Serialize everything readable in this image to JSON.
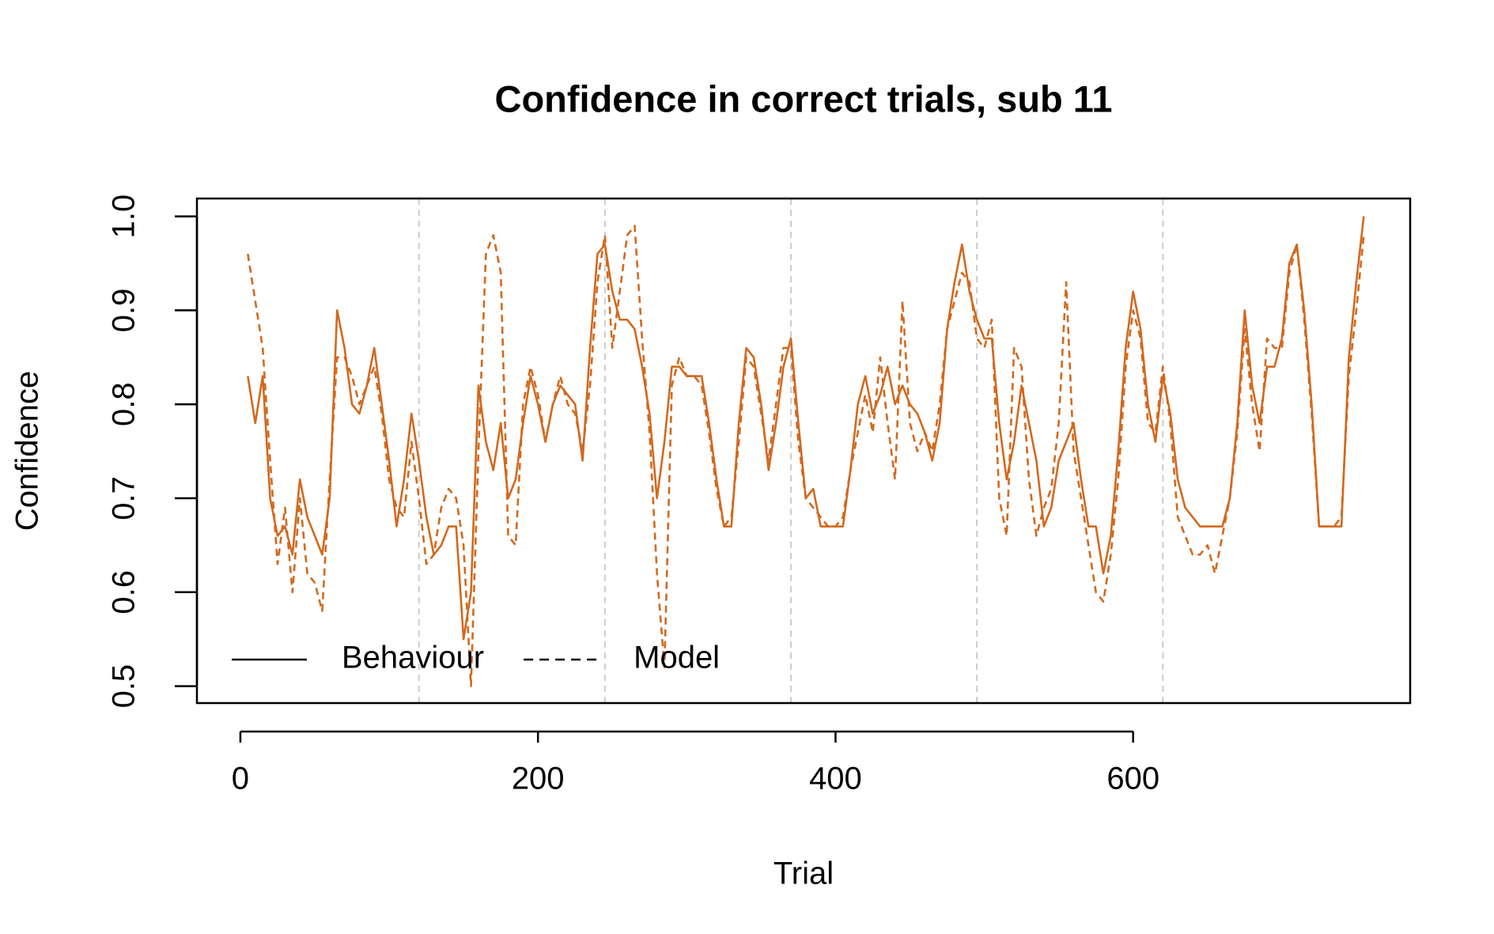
{
  "chart_data": {
    "type": "line",
    "title": "Confidence in correct trials, sub 11",
    "xlabel": "Trial",
    "ylabel": "Confidence",
    "x": [
      5,
      10,
      15,
      20,
      25,
      30,
      35,
      40,
      45,
      50,
      55,
      60,
      65,
      70,
      75,
      80,
      85,
      90,
      95,
      100,
      105,
      110,
      115,
      120,
      125,
      130,
      135,
      140,
      145,
      150,
      155,
      160,
      165,
      170,
      175,
      180,
      185,
      190,
      195,
      200,
      205,
      210,
      215,
      220,
      225,
      230,
      235,
      240,
      245,
      250,
      255,
      260,
      265,
      270,
      275,
      280,
      285,
      290,
      295,
      300,
      305,
      310,
      315,
      320,
      325,
      330,
      335,
      340,
      345,
      350,
      355,
      360,
      365,
      370,
      375,
      380,
      385,
      390,
      395,
      400,
      405,
      410,
      415,
      420,
      425,
      430,
      435,
      440,
      445,
      450,
      455,
      460,
      465,
      470,
      475,
      480,
      485,
      490,
      495,
      500,
      505,
      510,
      515,
      520,
      525,
      530,
      535,
      540,
      545,
      550,
      555,
      560,
      565,
      570,
      575,
      580,
      585,
      590,
      595,
      600,
      605,
      610,
      615,
      620,
      625,
      630,
      635,
      640,
      645,
      650,
      655,
      660,
      665,
      670,
      675,
      680,
      685,
      690,
      695,
      700,
      705,
      710,
      715,
      720,
      725,
      730,
      735,
      740,
      745,
      750,
      755
    ],
    "series": [
      {
        "name": "Behaviour",
        "color": "#d2691e",
        "linestyle": "solid",
        "values": [
          0.83,
          0.78,
          0.83,
          0.7,
          0.66,
          0.67,
          0.64,
          0.72,
          0.68,
          0.66,
          0.64,
          0.7,
          0.9,
          0.86,
          0.8,
          0.79,
          0.82,
          0.86,
          0.8,
          0.74,
          0.67,
          0.72,
          0.79,
          0.74,
          0.68,
          0.64,
          0.65,
          0.67,
          0.67,
          0.55,
          0.6,
          0.82,
          0.76,
          0.73,
          0.78,
          0.7,
          0.72,
          0.78,
          0.83,
          0.8,
          0.76,
          0.8,
          0.82,
          0.81,
          0.8,
          0.74,
          0.86,
          0.96,
          0.97,
          0.92,
          0.89,
          0.89,
          0.88,
          0.84,
          0.79,
          0.7,
          0.76,
          0.84,
          0.84,
          0.83,
          0.83,
          0.83,
          0.78,
          0.72,
          0.67,
          0.67,
          0.78,
          0.86,
          0.85,
          0.8,
          0.73,
          0.78,
          0.84,
          0.87,
          0.78,
          0.7,
          0.71,
          0.67,
          0.67,
          0.67,
          0.67,
          0.73,
          0.8,
          0.83,
          0.79,
          0.81,
          0.84,
          0.8,
          0.82,
          0.8,
          0.79,
          0.77,
          0.74,
          0.78,
          0.88,
          0.93,
          0.97,
          0.92,
          0.89,
          0.87,
          0.87,
          0.78,
          0.72,
          0.76,
          0.82,
          0.78,
          0.74,
          0.67,
          0.69,
          0.74,
          0.76,
          0.78,
          0.72,
          0.67,
          0.67,
          0.62,
          0.66,
          0.75,
          0.86,
          0.92,
          0.88,
          0.8,
          0.76,
          0.83,
          0.79,
          0.72,
          0.69,
          0.68,
          0.67,
          0.67,
          0.67,
          0.67,
          0.7,
          0.78,
          0.9,
          0.82,
          0.78,
          0.84,
          0.84,
          0.87,
          0.95,
          0.97,
          0.9,
          0.8,
          0.67,
          0.67,
          0.67,
          0.67,
          0.85,
          0.93,
          1.0
        ]
      },
      {
        "name": "Model",
        "color": "#d2691e",
        "linestyle": "dashed",
        "values": [
          0.96,
          0.91,
          0.86,
          0.74,
          0.63,
          0.69,
          0.6,
          0.7,
          0.62,
          0.61,
          0.58,
          0.72,
          0.85,
          0.85,
          0.83,
          0.8,
          0.82,
          0.84,
          0.79,
          0.72,
          0.69,
          0.68,
          0.76,
          0.7,
          0.63,
          0.64,
          0.69,
          0.71,
          0.7,
          0.65,
          0.5,
          0.75,
          0.96,
          0.98,
          0.94,
          0.66,
          0.65,
          0.8,
          0.84,
          0.81,
          0.76,
          0.8,
          0.83,
          0.8,
          0.79,
          0.75,
          0.82,
          0.93,
          0.98,
          0.86,
          0.92,
          0.98,
          0.99,
          0.87,
          0.77,
          0.62,
          0.52,
          0.82,
          0.85,
          0.83,
          0.83,
          0.82,
          0.77,
          0.71,
          0.67,
          0.68,
          0.76,
          0.85,
          0.84,
          0.79,
          0.74,
          0.8,
          0.86,
          0.86,
          0.76,
          0.7,
          0.69,
          0.68,
          0.67,
          0.67,
          0.68,
          0.73,
          0.77,
          0.81,
          0.77,
          0.85,
          0.78,
          0.72,
          0.91,
          0.78,
          0.75,
          0.77,
          0.75,
          0.8,
          0.88,
          0.91,
          0.94,
          0.93,
          0.87,
          0.86,
          0.89,
          0.7,
          0.66,
          0.86,
          0.84,
          0.72,
          0.66,
          0.69,
          0.71,
          0.78,
          0.93,
          0.75,
          0.7,
          0.65,
          0.6,
          0.59,
          0.64,
          0.72,
          0.84,
          0.9,
          0.87,
          0.78,
          0.77,
          0.84,
          0.78,
          0.68,
          0.66,
          0.64,
          0.64,
          0.65,
          0.62,
          0.66,
          0.7,
          0.77,
          0.88,
          0.8,
          0.75,
          0.87,
          0.86,
          0.86,
          0.94,
          0.97,
          0.89,
          0.79,
          0.67,
          0.67,
          0.67,
          0.68,
          0.83,
          0.9,
          0.98
        ]
      }
    ],
    "vlines": [
      120,
      245,
      370,
      495,
      620
    ],
    "vline_color": "#cccccc",
    "xlim": [
      -29.2,
      786.2
    ],
    "ylim": [
      0.482,
      1.019
    ],
    "xticks": [
      0,
      200,
      400,
      600
    ],
    "yticks": [
      0.5,
      0.6,
      0.7,
      0.8,
      0.9,
      {
        "value": 1,
        "label": "1.0"
      }
    ],
    "legend": "bottomleft"
  }
}
